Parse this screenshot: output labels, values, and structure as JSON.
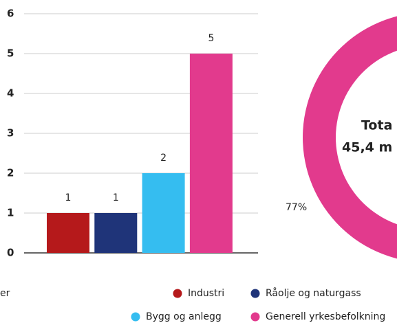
{
  "chart_data": [
    {
      "type": "bar",
      "categories": [
        "Industri",
        "Råolje og naturgass",
        "Bygg og anlegg",
        "Generell yrkesbefolkning"
      ],
      "values": [
        1,
        1,
        2,
        5
      ],
      "colors": [
        "#b5191b",
        "#1f3479",
        "#35bdf0",
        "#e23a8d"
      ],
      "ylim": [
        0,
        6
      ],
      "yticks": [
        0,
        1,
        2,
        3,
        4,
        5,
        6
      ],
      "grid": true,
      "note": "er"
    },
    {
      "type": "donut",
      "center_text": [
        "Tota",
        "45,4 m"
      ],
      "values": [
        77
      ],
      "value_labels": [
        "77%"
      ],
      "colors": [
        "#e23a8d"
      ]
    }
  ]
}
